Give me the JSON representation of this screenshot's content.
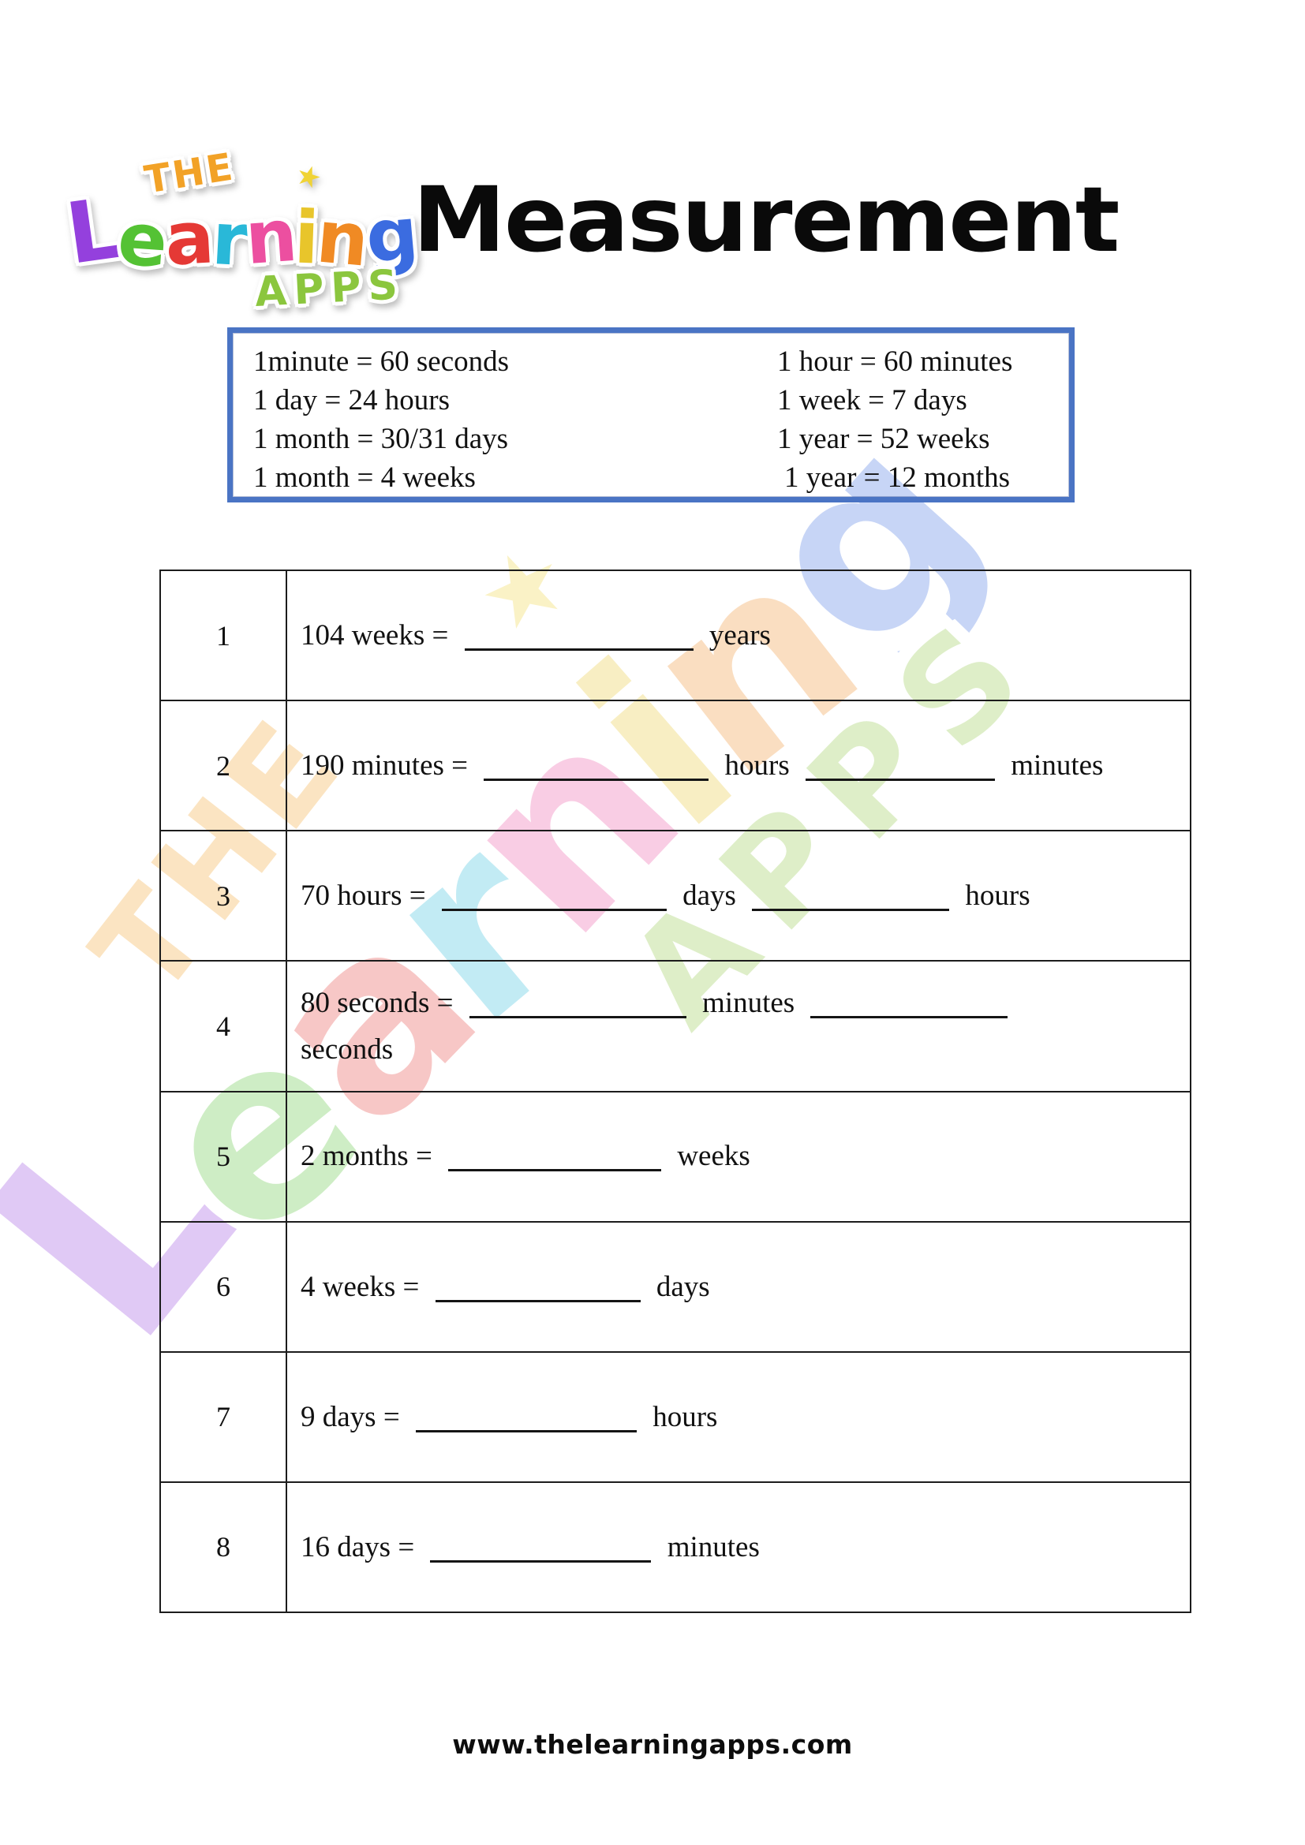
{
  "header": {
    "title": "Measurement"
  },
  "logo": {
    "the": "THE",
    "word": [
      "L",
      "e",
      "a",
      "r",
      "n",
      "i",
      "n",
      "g"
    ],
    "apps": "APPS",
    "star": "★"
  },
  "facts": {
    "left": [
      "1minute = 60 seconds",
      "1 day = 24 hours",
      "1 month = 30/31 days",
      "1 month = 4 weeks"
    ],
    "right": [
      "1 hour = 60 minutes",
      "1 week = 7 days",
      "1 year = 52 weeks",
      "1 year = 12 months"
    ]
  },
  "questions": [
    {
      "num": "1",
      "parts": [
        {
          "t": "104 weeks ="
        },
        {
          "b": 290
        },
        {
          "t": "years"
        }
      ]
    },
    {
      "num": "2",
      "parts": [
        {
          "t": "190 minutes ="
        },
        {
          "b": 285
        },
        {
          "t": "hours"
        },
        {
          "b": 240
        },
        {
          "t": "minutes"
        }
      ]
    },
    {
      "num": "3",
      "parts": [
        {
          "t": "70 hours ="
        },
        {
          "b": 285
        },
        {
          "t": "days"
        },
        {
          "b": 250
        },
        {
          "t": "hours"
        }
      ]
    },
    {
      "num": "4",
      "parts": [
        {
          "t": "80 seconds ="
        },
        {
          "b": 275
        },
        {
          "t": "minutes"
        },
        {
          "b": 250
        },
        {
          "br": true
        },
        {
          "t": "seconds"
        }
      ]
    },
    {
      "num": "5",
      "parts": [
        {
          "t": "2 months ="
        },
        {
          "b": 270
        },
        {
          "t": "weeks"
        }
      ]
    },
    {
      "num": "6",
      "parts": [
        {
          "t": "4 weeks ="
        },
        {
          "b": 260
        },
        {
          "t": "days"
        }
      ]
    },
    {
      "num": "7",
      "parts": [
        {
          "t": "9 days ="
        },
        {
          "b": 280
        },
        {
          "t": "hours"
        }
      ]
    },
    {
      "num": "8",
      "parts": [
        {
          "t": "16 days ="
        },
        {
          "b": 280
        },
        {
          "t": "minutes"
        }
      ]
    }
  ],
  "footer": {
    "url": "www.thelearningapps.com"
  },
  "colors": {
    "box_border": "#4a74c4",
    "table_border": "#1c1c1c",
    "text": "#111111",
    "logo": {
      "the": "#f2a227",
      "L": "#9440dd",
      "e": "#54c234",
      "a": "#e53935",
      "r": "#29b8d8",
      "n1": "#ec4fa0",
      "i": "#e8c52b",
      "n2": "#f08a24",
      "g": "#3b6ce0",
      "apps": "#8bc63e",
      "star": "#f0d335"
    }
  }
}
